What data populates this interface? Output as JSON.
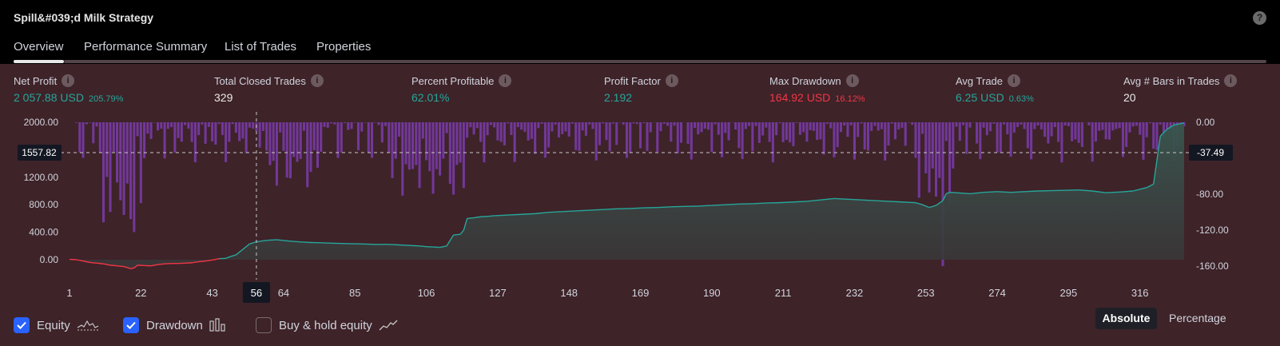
{
  "title": "Spill&#039;d Milk Strategy",
  "help_label": "?",
  "tabs": [
    {
      "label": "Overview",
      "active": true
    },
    {
      "label": "Performance Summary",
      "active": false
    },
    {
      "label": "List of Trades",
      "active": false
    },
    {
      "label": "Properties",
      "active": false
    }
  ],
  "metrics": {
    "net_profit": {
      "label": "Net Profit",
      "value": "2 057.88 USD",
      "pct": "205.79%"
    },
    "total_closed_trades": {
      "label": "Total Closed Trades",
      "value": "329"
    },
    "percent_profitable": {
      "label": "Percent Profitable",
      "value": "62.01%"
    },
    "profit_factor": {
      "label": "Profit Factor",
      "value": "2.192"
    },
    "max_drawdown": {
      "label": "Max Drawdown",
      "value": "164.92 USD",
      "pct": "16.12%"
    },
    "avg_trade": {
      "label": "Avg Trade",
      "value": "6.25 USD",
      "pct": "0.63%"
    },
    "avg_bars": {
      "label": "Avg # Bars in Trades",
      "value": "20"
    }
  },
  "colors": {
    "equity_positive": "#26a69a",
    "equity_negative": "#f23645",
    "drawdown_bars": "#7b3cad",
    "background": "#3e2329",
    "checkbox": "#2962ff"
  },
  "chart_data": {
    "type": "line",
    "x_ticks": [
      1,
      22,
      43,
      56,
      64,
      85,
      106,
      127,
      148,
      169,
      190,
      211,
      232,
      253,
      274,
      295,
      316
    ],
    "x_range": [
      1,
      329
    ],
    "y_left_ticks": [
      "2000.00",
      "1200.00",
      "800.00",
      "400.00",
      "0.00"
    ],
    "y_left_range": [
      -100,
      2020
    ],
    "y_right_ticks": [
      "0.00",
      "-80.00",
      "-120.00",
      "-160.00"
    ],
    "y_right_range": [
      -160,
      0
    ],
    "crosshair": {
      "x": 56,
      "left_value": "1557.82",
      "right_value": "-37.49"
    },
    "series": [
      {
        "name": "Equity",
        "x": [
          1,
          3,
          5,
          7,
          9,
          11,
          13,
          15,
          17,
          19,
          20,
          21,
          23,
          25,
          27,
          29,
          31,
          33,
          35,
          37,
          39,
          41,
          43,
          45,
          47,
          48,
          50,
          52,
          54,
          56,
          58,
          60,
          62,
          64,
          66,
          68,
          70,
          72,
          74,
          76,
          78,
          80,
          82,
          84,
          86,
          88,
          90,
          92,
          94,
          96,
          98,
          100,
          102,
          104,
          106,
          108,
          110,
          112,
          114,
          116,
          117,
          118,
          120,
          122,
          124,
          126,
          128,
          130,
          134,
          138,
          142,
          146,
          150,
          154,
          158,
          162,
          166,
          170,
          174,
          178,
          182,
          186,
          190,
          194,
          198,
          202,
          206,
          210,
          214,
          218,
          222,
          226,
          230,
          234,
          238,
          242,
          246,
          250,
          252,
          254,
          256,
          258,
          259,
          260,
          262,
          266,
          270,
          274,
          278,
          282,
          286,
          290,
          294,
          298,
          302,
          306,
          310,
          314,
          318,
          320,
          322,
          324,
          326,
          329
        ],
        "values": [
          5,
          0,
          -20,
          -40,
          -50,
          -60,
          -80,
          -90,
          -100,
          -130,
          -120,
          -80,
          -85,
          -90,
          -70,
          -60,
          -55,
          -55,
          -50,
          -45,
          -30,
          -20,
          -5,
          15,
          20,
          40,
          70,
          150,
          230,
          260,
          275,
          285,
          290,
          280,
          270,
          262,
          255,
          250,
          248,
          245,
          240,
          238,
          235,
          232,
          230,
          228,
          225,
          222,
          225,
          220,
          215,
          210,
          205,
          200,
          190,
          185,
          180,
          200,
          360,
          370,
          430,
          600,
          610,
          625,
          630,
          640,
          645,
          650,
          660,
          670,
          690,
          700,
          710,
          720,
          730,
          740,
          745,
          755,
          760,
          770,
          775,
          780,
          790,
          800,
          810,
          815,
          825,
          830,
          840,
          850,
          870,
          890,
          880,
          870,
          860,
          850,
          840,
          830,
          800,
          760,
          790,
          860,
          960,
          980,
          975,
          960,
          980,
          990,
          980,
          990,
          1000,
          1005,
          1010,
          1015,
          1000,
          975,
          985,
          1000,
          1050,
          1100,
          1800,
          1900,
          1960,
          1990
        ]
      }
    ],
    "annotations": [
      {
        "type": "drawdown-bars",
        "x_range": [
          3,
          329
        ],
        "axis": "right"
      }
    ]
  },
  "legend": {
    "equity": {
      "label": "Equity",
      "checked": true,
      "icon": "equity-icon"
    },
    "drawdown": {
      "label": "Drawdown",
      "checked": true,
      "icon": "drawdown-icon"
    },
    "buyhold": {
      "label": "Buy & hold equity",
      "checked": false,
      "icon": "buy-hold-icon"
    }
  },
  "toggle": {
    "absolute": "Absolute",
    "percentage": "Percentage"
  }
}
